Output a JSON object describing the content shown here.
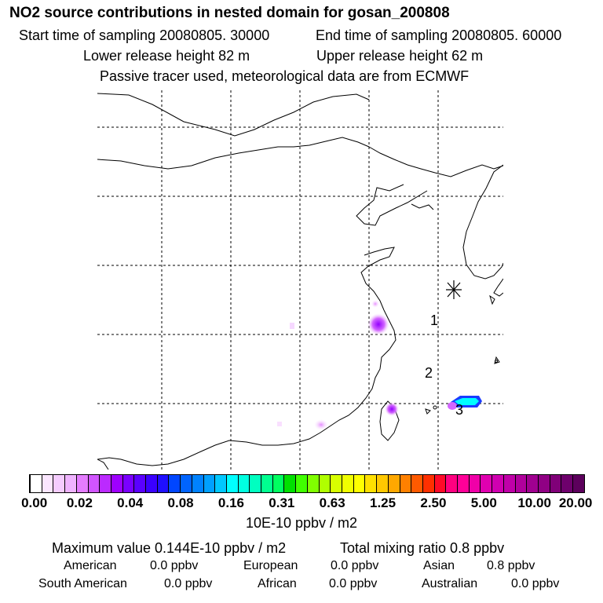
{
  "header": {
    "title": "NO2 source contributions in nested domain for gosan_200808",
    "start_time": "Start time of sampling 20080805. 30000",
    "end_time": "End time of sampling 20080805. 60000",
    "lower_height": "Lower release height   82 m",
    "upper_height": "Upper release height   62 m",
    "note": "Passive tracer used, meteorological data are from ECMWF"
  },
  "map": {
    "receptor_marks": [
      "1",
      "2",
      "3"
    ]
  },
  "colorbar": {
    "labels": [
      "0.00",
      "0.02",
      "0.04",
      "0.08",
      "0.16",
      "0.31",
      "0.63",
      "1.25",
      "2.50",
      "5.00",
      "10.00",
      "20.00"
    ],
    "colors": [
      "#ffffff",
      "#fbe6ff",
      "#f5ccff",
      "#efb3ff",
      "#e47cff",
      "#d155ff",
      "#bb2aff",
      "#9e00ff",
      "#7a00ff",
      "#5a00ff",
      "#3a00ff",
      "#1f0fff",
      "#0046ff",
      "#0064ff",
      "#0082ff",
      "#00a0ff",
      "#00c8ff",
      "#00ffff",
      "#00ffe0",
      "#00ffc0",
      "#00ff90",
      "#00ff60",
      "#00e000",
      "#40ff00",
      "#80ff00",
      "#b0ff00",
      "#d8ff00",
      "#f0ff00",
      "#ffff00",
      "#ffe000",
      "#ffc800",
      "#ffa800",
      "#ff8000",
      "#ff5a00",
      "#ff3000",
      "#ff0a28",
      "#ff0080",
      "#ff0098",
      "#f000a8",
      "#e000b0",
      "#d000b0",
      "#c000a8",
      "#b0009c",
      "#a00090",
      "#900084",
      "#800078",
      "#6e006c",
      "#5c005c"
    ],
    "unit": "10E-10 ppbv / m2"
  },
  "summary": {
    "max_value": "Maximum value  0.144E-10 ppbv / m2",
    "total_mixing": "Total mixing ratio        0.8 ppbv",
    "regions": [
      {
        "name": "American",
        "value": "0.0 ppbv"
      },
      {
        "name": "European",
        "value": "0.0 ppbv"
      },
      {
        "name": "Asian",
        "value": "0.8 ppbv"
      },
      {
        "name": "South American",
        "value": "0.0 ppbv"
      },
      {
        "name": "African",
        "value": "0.0 ppbv"
      },
      {
        "name": "Australian",
        "value": "0.0 ppbv"
      }
    ]
  }
}
